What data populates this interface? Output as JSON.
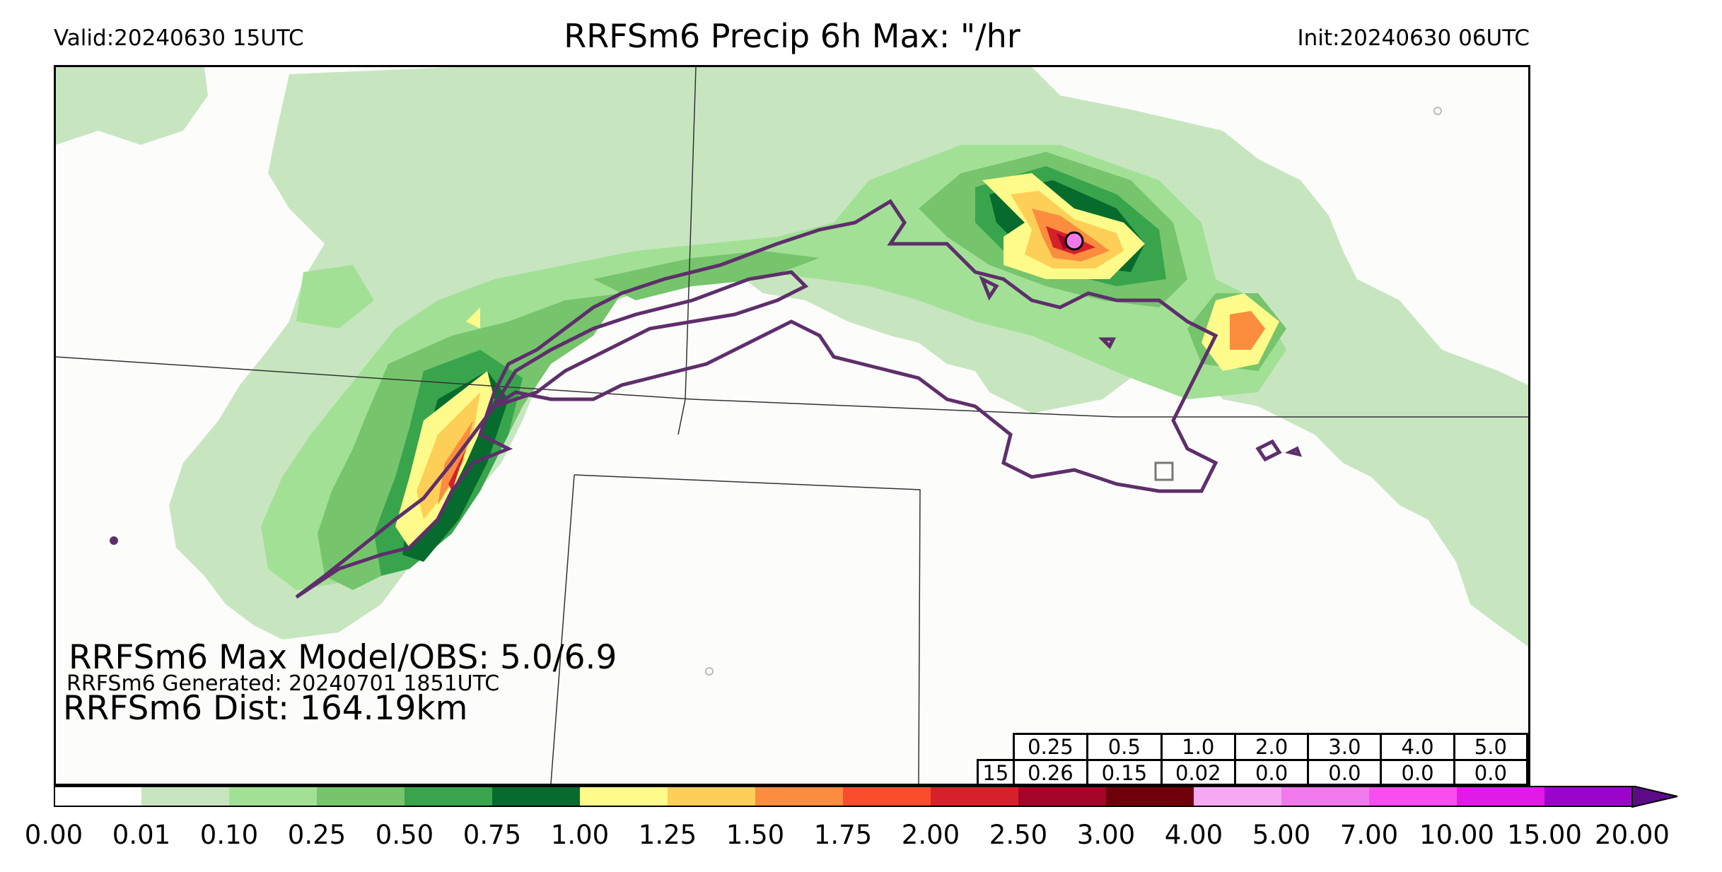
{
  "header": {
    "valid": "Valid:20240630 15UTC",
    "title": "RRFSm6 Precip 6h Max: \"/hr",
    "init": "Init:20240630 06UTC"
  },
  "annotations": {
    "max_model_obs": "RRFSm6 Max Model/OBS: 5.0/6.9",
    "generated": "RRFSm6 Generated: 20240701 1851UTC",
    "dist": "RRFSm6 Dist: 164.19km"
  },
  "threshold_table": {
    "thresholds": [
      "0.25",
      "0.5",
      "1.0",
      "2.0",
      "3.0",
      "4.0",
      "5.0"
    ],
    "row_label": "15",
    "values": [
      "0.26",
      "0.15",
      "0.02",
      "0.0",
      "0.0",
      "0.0",
      "0.0"
    ]
  },
  "colorbar": {
    "ticks": [
      "0.00",
      "0.01",
      "0.10",
      "0.25",
      "0.50",
      "0.75",
      "1.00",
      "1.25",
      "1.50",
      "1.75",
      "2.00",
      "2.50",
      "3.00",
      "4.00",
      "5.00",
      "7.00",
      "10.00",
      "15.00",
      "20.00"
    ],
    "colors": [
      "#ffffff",
      "#c7e6c0",
      "#a2e096",
      "#76c46c",
      "#38a54d",
      "#076b2e",
      "#fffb8a",
      "#fdcf57",
      "#fc8c3e",
      "#f94d2b",
      "#d6202a",
      "#a6052a",
      "#6f0009",
      "#f7a8f3",
      "#f279ec",
      "#f84ef1",
      "#e21ae8",
      "#9b05c9"
    ],
    "extend_color": "#5d0a89"
  },
  "colors": {
    "contour": "#5e2f6b",
    "border": "#222222"
  }
}
